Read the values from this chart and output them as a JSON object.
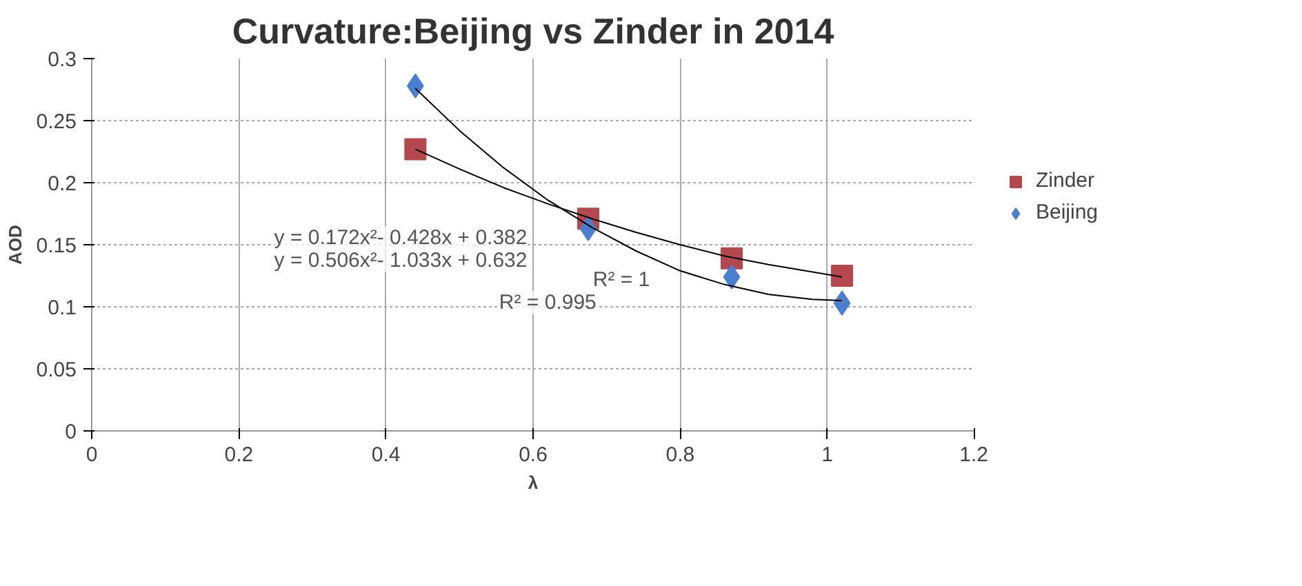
{
  "chart_data": {
    "type": "scatter",
    "title": "Curvature:Beijing vs Zinder in 2014",
    "xlabel": "λ",
    "ylabel": "AOD",
    "series": [
      {
        "name": "Zinder",
        "color": "#b5474f",
        "marker": "square",
        "x": [
          0.44,
          0.675,
          0.87,
          1.02
        ],
        "values": [
          0.227,
          0.171,
          0.139,
          0.125
        ]
      },
      {
        "name": "Beijing",
        "color": "#4a7fd0",
        "marker": "diamond",
        "x": [
          0.44,
          0.675,
          0.87,
          1.02
        ],
        "values": [
          0.278,
          0.163,
          0.124,
          0.103
        ]
      },
      {
        "type": "line",
        "color": "#000000",
        "x": [
          0.44,
          0.5,
          0.56,
          0.62,
          0.68,
          0.74,
          0.8,
          0.86,
          0.92,
          0.98,
          1.02
        ],
        "values": [
          0.227,
          0.211,
          0.196,
          0.183,
          0.171,
          0.16,
          0.15,
          0.141,
          0.134,
          0.128,
          0.124
        ]
      },
      {
        "type": "line",
        "color": "#000000",
        "x": [
          0.44,
          0.5,
          0.56,
          0.62,
          0.68,
          0.74,
          0.8,
          0.86,
          0.92,
          0.98,
          1.02
        ],
        "values": [
          0.276,
          0.242,
          0.212,
          0.186,
          0.164,
          0.145,
          0.129,
          0.118,
          0.11,
          0.106,
          0.105
        ]
      }
    ],
    "annotations": [
      "y = 0.172x²- 0.428x + 0.382",
      "y = 0.506x²- 1.033x + 0.632",
      "R² = 1",
      "R² = 0.995"
    ],
    "xlim": [
      0,
      1.2
    ],
    "xticks": [
      0,
      0.2,
      0.4,
      0.6,
      0.8,
      1,
      1.2
    ],
    "ylim": [
      0,
      0.3
    ],
    "yticks": [
      0,
      0.05,
      0.1,
      0.15,
      0.2,
      0.25,
      0.3
    ],
    "grid": true,
    "legend": "right"
  }
}
